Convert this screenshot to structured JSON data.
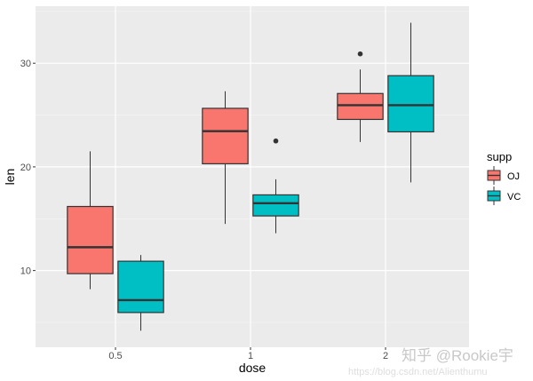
{
  "chart_data": {
    "type": "boxplot",
    "xlabel": "dose",
    "ylabel": "len",
    "categories": [
      "0.5",
      "1",
      "2"
    ],
    "yticks": [
      10,
      20,
      30
    ],
    "ylim": [
      2.6,
      35.5
    ],
    "grid": true,
    "legend": {
      "title": "supp",
      "position": "right"
    },
    "series": [
      {
        "name": "OJ",
        "color": "#F8766D",
        "boxes": [
          {
            "min": 8.2,
            "q1": 9.7,
            "median": 12.25,
            "q3": 16.18,
            "max": 21.5,
            "outliers": []
          },
          {
            "min": 14.5,
            "q1": 20.3,
            "median": 23.45,
            "q3": 25.65,
            "max": 27.3,
            "outliers": []
          },
          {
            "min": 22.4,
            "q1": 24.58,
            "median": 25.95,
            "q3": 27.08,
            "max": 29.4,
            "outliers": [
              30.9
            ]
          }
        ]
      },
      {
        "name": "VC",
        "color": "#00BFC4",
        "boxes": [
          {
            "min": 4.2,
            "q1": 5.95,
            "median": 7.15,
            "q3": 10.9,
            "max": 11.5,
            "outliers": []
          },
          {
            "min": 13.6,
            "q1": 15.27,
            "median": 16.5,
            "q3": 17.3,
            "max": 18.8,
            "outliers": [
              22.5
            ]
          },
          {
            "min": 18.5,
            "q1": 23.38,
            "median": 25.95,
            "q3": 28.8,
            "max": 33.9,
            "outliers": []
          }
        ]
      }
    ]
  },
  "watermark": {
    "text": "知乎 @Rookie宇",
    "url": "https://blog.csdn.net/Alienthumu"
  }
}
